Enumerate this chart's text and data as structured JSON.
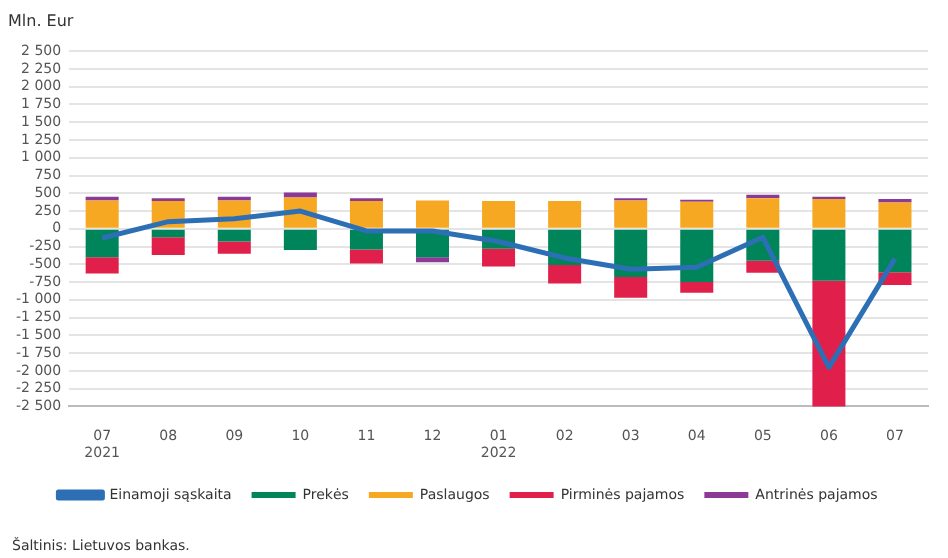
{
  "chart_data": {
    "type": "bar",
    "ylabel": "Mln. Eur",
    "stacked": true,
    "grid": "y",
    "legend": "bottom",
    "marker": "none",
    "categories": [
      "07\n2021",
      "08",
      "09",
      "10",
      "11",
      "12",
      "01\n2022",
      "02",
      "03",
      "04",
      "05",
      "06",
      "07"
    ],
    "series": [
      {
        "name": "Prekės",
        "color": "#00855a",
        "values": [
          -400,
          -120,
          -180,
          -300,
          -290,
          -400,
          -280,
          -510,
          -680,
          -750,
          -450,
          -730,
          -610
        ]
      },
      {
        "name": "Paslaugos",
        "color": "#f7a823",
        "values": [
          400,
          390,
          400,
          440,
          390,
          400,
          390,
          390,
          400,
          380,
          430,
          420,
          370
        ]
      },
      {
        "name": "Pirminės pajamos",
        "color": "#e0204a",
        "values": [
          -230,
          -250,
          -170,
          null,
          -200,
          null,
          -250,
          -260,
          -290,
          -150,
          -170,
          -1900,
          -180
        ]
      },
      {
        "name": "Antrinės pajamos",
        "color": "#8b3a96",
        "values": [
          50,
          40,
          50,
          70,
          40,
          -70,
          null,
          null,
          30,
          30,
          50,
          30,
          50
        ]
      },
      {
        "name": "Einamoji sąskaita",
        "type": "line",
        "color": "#2d6fb5",
        "values": [
          -130,
          100,
          140,
          250,
          -30,
          -30,
          -180,
          -410,
          -570,
          -540,
          -120,
          -1950,
          -420
        ]
      }
    ],
    "ylim": [
      -2500,
      2500
    ],
    "yticks": [
      {
        "value": -2500,
        "label": "-2 500"
      },
      {
        "value": -2250,
        "label": "-2 250"
      },
      {
        "value": -2000,
        "label": "-2 000"
      },
      {
        "value": -1750,
        "label": "-1 750"
      },
      {
        "value": -1500,
        "label": "-1 500"
      },
      {
        "value": -1250,
        "label": "-1 250"
      },
      {
        "value": -1000,
        "label": "-1 000"
      },
      -750,
      -500,
      -250,
      0,
      250,
      500,
      750,
      {
        "value": 1000,
        "label": "1 000"
      },
      {
        "value": 1250,
        "label": "1 250"
      },
      {
        "value": 1500,
        "label": "1 500"
      },
      {
        "value": 1750,
        "label": "1 750"
      },
      {
        "value": 2000,
        "label": "2 000"
      },
      {
        "value": 2250,
        "label": "2 250"
      },
      {
        "value": 2500,
        "label": "2 500"
      }
    ],
    "annotations": [
      "Šaltinis: Lietuvos bankas."
    ]
  }
}
